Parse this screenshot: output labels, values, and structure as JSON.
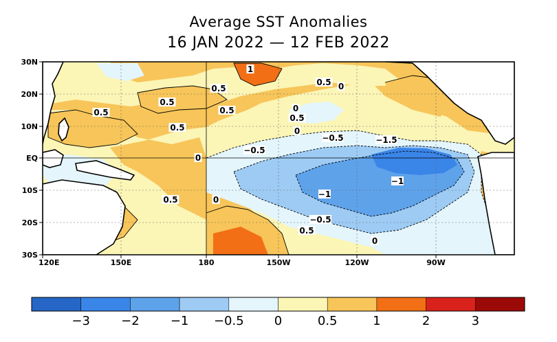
{
  "title": "Average SST Anomalies",
  "subtitle": "16 JAN 2022 — 12 FEB 2022",
  "map": {
    "lat_ticks": [
      "30N",
      "20N",
      "10N",
      "EQ",
      "10S",
      "20S",
      "30S"
    ],
    "lon_ticks": [
      "120E",
      "150E",
      "180",
      "150W",
      "120W",
      "90W"
    ],
    "contour_labels": [
      "1",
      "0.5",
      "0.5",
      "0.5",
      "0.5",
      "0.5",
      "0.5",
      "0.5",
      "0",
      "0",
      "0",
      "0",
      "0",
      "−0.5",
      "−0.5",
      "−0.5",
      "−1.5",
      "−1",
      "−1",
      "0.5",
      "0.5",
      "0"
    ]
  },
  "colorbar": {
    "colors": [
      "#2566c6",
      "#3a85e8",
      "#5ea2ea",
      "#9dcbf4",
      "#e4f5fc",
      "#fbf5b6",
      "#f7c559",
      "#f26f16",
      "#d9221b",
      "#9c0a07"
    ],
    "tick_labels": [
      "−3",
      "−2",
      "−1",
      "−0.5",
      "0",
      "0.5",
      "1",
      "2",
      "3"
    ]
  },
  "palette": {
    "pos05": "#fbf5b6",
    "pos1": "#f7c559",
    "pos2": "#f26f16",
    "pos3": "#d9221b",
    "neg05": "#e4f5fc",
    "neg1": "#9dcbf4",
    "neg15": "#5ea2ea",
    "neg2": "#3a85e8"
  }
}
